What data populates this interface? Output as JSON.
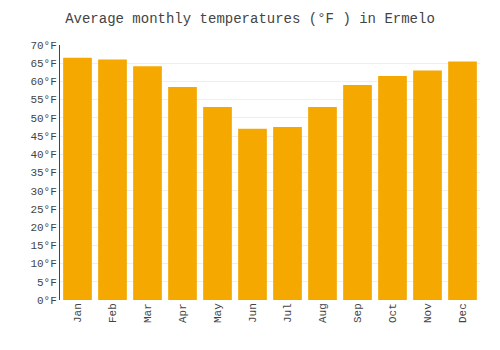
{
  "chart_data": {
    "type": "bar",
    "title": "Average monthly temperatures (°F ) in Ermelo",
    "categories": [
      "Jan",
      "Feb",
      "Mar",
      "Apr",
      "May",
      "Jun",
      "Jul",
      "Aug",
      "Sep",
      "Oct",
      "Nov",
      "Dec"
    ],
    "values": [
      66.5,
      66,
      64.2,
      58.5,
      53,
      47,
      47.5,
      53,
      59,
      61.5,
      63,
      65.5
    ],
    "color": "#F5A800",
    "ylim": [
      0,
      70
    ],
    "yticks": [
      {
        "value": 0,
        "label": "0°F"
      },
      {
        "value": 5,
        "label": "5°F"
      },
      {
        "value": 10,
        "label": "10°F"
      },
      {
        "value": 15,
        "label": "15°F"
      },
      {
        "value": 20,
        "label": "20°F"
      },
      {
        "value": 25,
        "label": "25°F"
      },
      {
        "value": 30,
        "label": "30°F"
      },
      {
        "value": 35,
        "label": "35°F"
      },
      {
        "value": 40,
        "label": "40°F"
      },
      {
        "value": 45,
        "label": "45°F"
      },
      {
        "value": 50,
        "label": "50°F"
      },
      {
        "value": 55,
        "label": "55°F"
      },
      {
        "value": 60,
        "label": "60°F"
      },
      {
        "value": 65,
        "label": "65°F"
      },
      {
        "value": 70,
        "label": "70°F"
      }
    ],
    "grid": true
  }
}
